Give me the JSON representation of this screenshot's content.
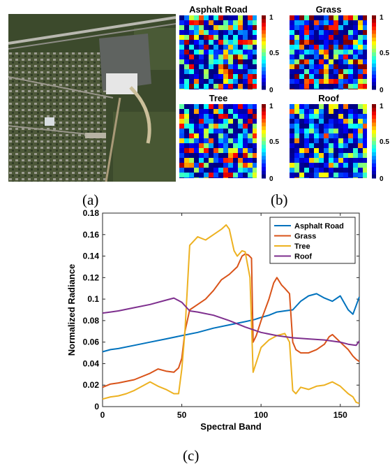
{
  "panels": {
    "a_label": "(a)",
    "b_label": "(b)",
    "c_label": "(c)"
  },
  "abundance_maps": [
    {
      "title": "Asphalt Road",
      "colorbar_ticks": [
        "1",
        "0.5",
        "0"
      ]
    },
    {
      "title": "Grass",
      "colorbar_ticks": [
        "1",
        "0.5",
        "0"
      ]
    },
    {
      "title": "Tree",
      "colorbar_ticks": [
        "1",
        "0.5",
        "0"
      ]
    },
    {
      "title": "Roof",
      "colorbar_ticks": [
        "1",
        "0.5",
        "0"
      ]
    }
  ],
  "colors": {
    "asphalt": "#0072BD",
    "grass": "#D95319",
    "tree": "#EDB120",
    "roof": "#7E2F8E"
  },
  "chart_data": {
    "type": "line",
    "xlabel": "Spectral Band",
    "ylabel": "Normalized Radiance",
    "xlim": [
      0,
      162
    ],
    "ylim": [
      0,
      0.18
    ],
    "xticks": [
      0,
      50,
      100,
      150
    ],
    "yticks": [
      0,
      0.02,
      0.04,
      0.06,
      0.08,
      0.1,
      0.12,
      0.14,
      0.16,
      0.18
    ],
    "ytick_labels": [
      "0",
      "0.02",
      "0.04",
      "0.06",
      "0.08",
      "0.1",
      "0.12",
      "0.14",
      "0.16",
      "0.18"
    ],
    "grid": false,
    "legend_position": "top-right",
    "series": [
      {
        "name": "Asphalt Road",
        "color": "#0072BD",
        "x": [
          0,
          5,
          10,
          20,
          30,
          40,
          50,
          60,
          70,
          80,
          90,
          96,
          100,
          105,
          110,
          115,
          120,
          125,
          130,
          135,
          140,
          145,
          150,
          155,
          158,
          160,
          162
        ],
        "y": [
          0.051,
          0.053,
          0.054,
          0.057,
          0.06,
          0.063,
          0.066,
          0.069,
          0.073,
          0.076,
          0.079,
          0.081,
          0.083,
          0.085,
          0.088,
          0.089,
          0.09,
          0.098,
          0.103,
          0.105,
          0.101,
          0.098,
          0.103,
          0.09,
          0.086,
          0.094,
          0.102
        ]
      },
      {
        "name": "Grass",
        "color": "#D95319",
        "x": [
          0,
          5,
          10,
          20,
          30,
          35,
          40,
          45,
          48,
          50,
          52,
          55,
          60,
          65,
          70,
          75,
          80,
          85,
          88,
          90,
          92,
          94,
          95,
          97,
          100,
          105,
          108,
          110,
          113,
          115,
          118,
          120,
          122,
          125,
          130,
          135,
          140,
          143,
          145,
          150,
          155,
          158,
          160,
          162
        ],
        "y": [
          0.018,
          0.021,
          0.022,
          0.025,
          0.031,
          0.035,
          0.033,
          0.032,
          0.036,
          0.045,
          0.07,
          0.09,
          0.095,
          0.1,
          0.108,
          0.118,
          0.123,
          0.13,
          0.14,
          0.142,
          0.141,
          0.138,
          0.06,
          0.066,
          0.08,
          0.1,
          0.115,
          0.12,
          0.113,
          0.11,
          0.105,
          0.06,
          0.053,
          0.05,
          0.05,
          0.053,
          0.058,
          0.065,
          0.067,
          0.06,
          0.053,
          0.047,
          0.044,
          0.042
        ]
      },
      {
        "name": "Tree",
        "color": "#EDB120",
        "x": [
          0,
          5,
          10,
          15,
          20,
          25,
          30,
          35,
          40,
          45,
          48,
          50,
          52,
          55,
          60,
          65,
          70,
          75,
          78,
          80,
          83,
          85,
          88,
          90,
          93,
          95,
          100,
          105,
          110,
          115,
          118,
          120,
          122,
          125,
          130,
          135,
          140,
          145,
          150,
          155,
          158,
          160,
          162
        ],
        "y": [
          0.007,
          0.009,
          0.01,
          0.012,
          0.015,
          0.019,
          0.023,
          0.019,
          0.016,
          0.012,
          0.012,
          0.035,
          0.07,
          0.15,
          0.158,
          0.155,
          0.16,
          0.165,
          0.169,
          0.165,
          0.145,
          0.14,
          0.145,
          0.144,
          0.12,
          0.032,
          0.055,
          0.062,
          0.066,
          0.068,
          0.06,
          0.015,
          0.012,
          0.018,
          0.016,
          0.019,
          0.02,
          0.023,
          0.019,
          0.012,
          0.009,
          0.004,
          0.003
        ]
      },
      {
        "name": "Roof",
        "color": "#7E2F8E",
        "x": [
          0,
          5,
          10,
          20,
          30,
          40,
          45,
          50,
          55,
          60,
          70,
          80,
          90,
          100,
          110,
          120,
          130,
          140,
          150,
          155,
          160,
          162
        ],
        "y": [
          0.087,
          0.088,
          0.089,
          0.092,
          0.095,
          0.099,
          0.101,
          0.097,
          0.089,
          0.088,
          0.085,
          0.08,
          0.074,
          0.069,
          0.066,
          0.064,
          0.063,
          0.062,
          0.06,
          0.058,
          0.057,
          0.061
        ]
      }
    ]
  }
}
